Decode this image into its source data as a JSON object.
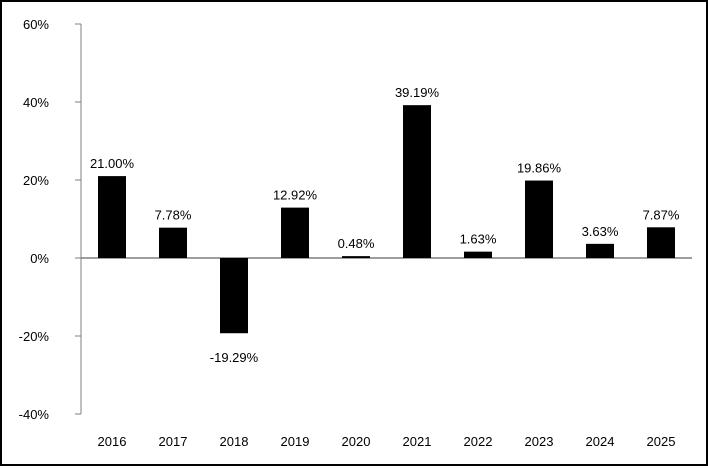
{
  "chart_data": {
    "type": "bar",
    "categories": [
      "2016",
      "2017",
      "2018",
      "2019",
      "2020",
      "2021",
      "2022",
      "2023",
      "2024",
      "2025"
    ],
    "values": [
      21.0,
      7.78,
      -19.29,
      12.92,
      0.48,
      39.19,
      1.63,
      19.86,
      3.63,
      7.87
    ],
    "data_labels": [
      "21.00%",
      "7.78%",
      "-19.29%",
      "12.92%",
      "0.48%",
      "39.19%",
      "1.63%",
      "19.86%",
      "3.63%",
      "7.87%"
    ],
    "ylim": [
      -40,
      60
    ],
    "yticks": [
      -40,
      -20,
      0,
      20,
      40,
      60
    ],
    "ytick_labels": [
      "-40%",
      "-20%",
      "0%",
      "20%",
      "40%",
      "60%"
    ],
    "bar_color": "#000000",
    "grid": false,
    "legend": "none"
  }
}
